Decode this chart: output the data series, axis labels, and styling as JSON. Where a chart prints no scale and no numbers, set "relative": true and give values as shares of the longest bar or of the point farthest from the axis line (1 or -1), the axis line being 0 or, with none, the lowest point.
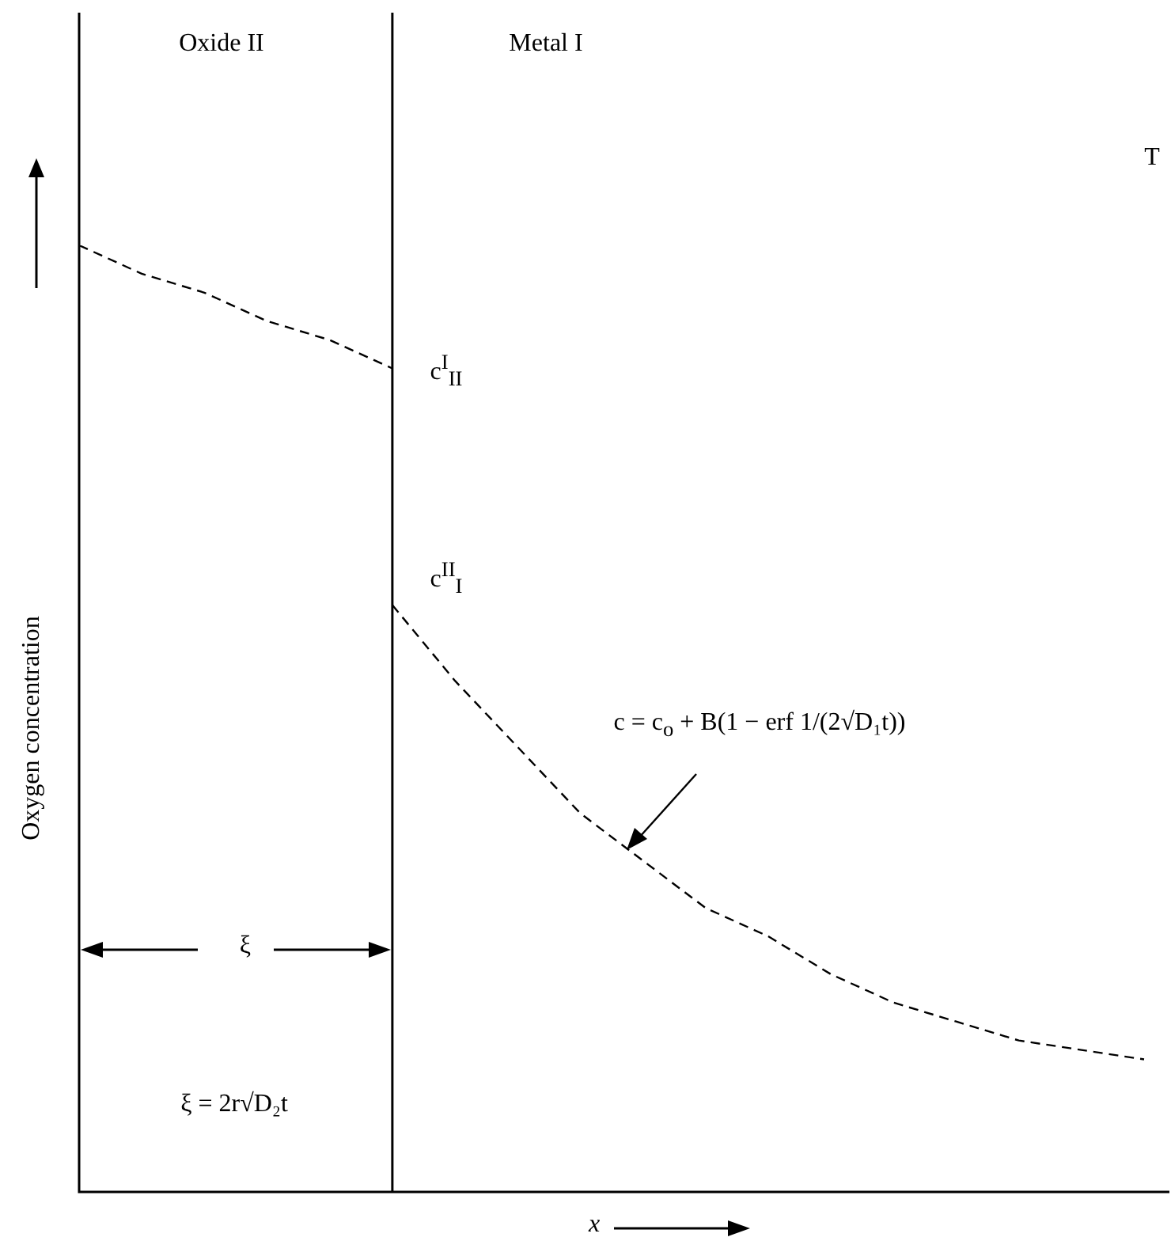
{
  "chart_data": {
    "type": "line",
    "relative": true,
    "xlabel": "x",
    "ylabel": "Oxygen concentration",
    "tick_labels": false,
    "grid": false,
    "legend": false,
    "marker": "none",
    "line_style": "dashed",
    "categories": [
      null,
      null,
      null,
      null,
      null,
      null,
      null,
      null,
      null,
      null,
      null,
      null,
      null,
      null,
      null,
      null,
      null,
      null
    ],
    "series": [
      {
        "color": "#000000",
        "values": [
          1,
          0.97,
          0.95,
          0.92,
          0.9,
          0.87,
          null,
          null,
          null,
          null,
          null,
          null,
          null,
          null,
          null,
          null,
          null,
          null
        ]
      },
      {
        "color": "#000000",
        "values": [
          null,
          null,
          null,
          null,
          null,
          0.62,
          0.54,
          0.47,
          0.4,
          0.35,
          0.3,
          0.27,
          0.23,
          0.2,
          0.18,
          0.16,
          0.15,
          0.14
        ]
      }
    ],
    "annotations": [
      "Oxide II",
      "Metal I",
      "c$^{I}$$_{II}$",
      "c$^{II}$$_{I}$",
      "c = c$_{o}$ + B(1 − erf 1/(2√D₁t))",
      "ξ",
      "ξ = 2r√D₂t",
      "T"
    ]
  }
}
